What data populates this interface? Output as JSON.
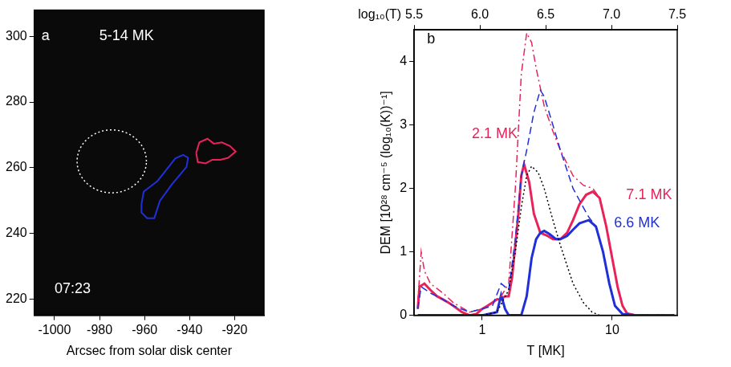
{
  "chart_data": [
    {
      "type": "image",
      "xlabel": "Arcsec from solar disk center",
      "xlim": [
        -1009,
        -907
      ],
      "xticks": [
        -1000,
        -980,
        -960,
        -940,
        -920
      ],
      "ylim": [
        215,
        308
      ],
      "yticks": [
        220,
        240,
        260,
        280,
        300
      ],
      "grid": false,
      "regions": [
        {
          "color": "#ffffff",
          "line_style": "dotted",
          "center": [
            -974.6,
            261.9
          ],
          "radius": [
            15.4,
            9.6
          ]
        },
        {
          "color": "#2030d8",
          "line_style": "solid",
          "x": [
            -961.4,
            -960.4,
            -954.3,
            -946.4,
            -942.9,
            -940.7,
            -941.4,
            -947.9,
            -953.2,
            -955.7,
            -958.9,
            -961.4
          ],
          "y": [
            248.9,
            252.7,
            255.9,
            262.8,
            263.9,
            263.0,
            260.2,
            254.9,
            249.9,
            244.6,
            244.6,
            246.3
          ]
        },
        {
          "color": "#e8235a",
          "line_style": "solid",
          "x": [
            -937.1,
            -935.7,
            -932.1,
            -929.3,
            -925.7,
            -922.1,
            -919.6,
            -922.9,
            -926.4,
            -930.0,
            -932.9,
            -936.4
          ],
          "y": [
            264.5,
            267.7,
            268.8,
            267.3,
            267.7,
            266.6,
            264.9,
            263.0,
            262.4,
            262.4,
            261.3,
            261.7
          ]
        }
      ],
      "annotations": [
        {
          "text": "a",
          "x": -1004,
          "y": 300,
          "color": "#ffffff"
        },
        {
          "text": "5-14 MK",
          "x": -968,
          "y": 300,
          "color": "#ffffff"
        },
        {
          "text": "07:23",
          "x": -992,
          "y": 223,
          "color": "#ffffff"
        }
      ]
    },
    {
      "type": "line",
      "xlabel": "T [MK]",
      "ylabel": "DEM [10²⁸ cm⁻⁵ (log₁₀(K))⁻¹]",
      "x2label": "log₁₀(T)",
      "log": "x",
      "xlim": [
        0.3162,
        31.62
      ],
      "xticks": [
        1,
        10
      ],
      "x2lim": [
        5.5,
        7.5
      ],
      "x2ticks": [
        5.5,
        {
          "value": 6,
          "label": "6.0"
        },
        6.5,
        {
          "value": 7,
          "label": "7.0"
        },
        7.5
      ],
      "ylim": [
        0,
        4.5
      ],
      "yticks": [
        0,
        1,
        2,
        3,
        4
      ],
      "grid": false,
      "series": [
        {
          "color": "#000000",
          "line_style": "dotted",
          "x": [
            1.0,
            1.3,
            1.6,
            1.8,
            2.0,
            2.2,
            2.4,
            2.7,
            3.0,
            3.5,
            4.0,
            5.0,
            6.0,
            7.0,
            8.0
          ],
          "values": [
            0,
            0.05,
            0.4,
            1.0,
            1.7,
            2.2,
            2.35,
            2.25,
            2.0,
            1.5,
            1.1,
            0.5,
            0.2,
            0.05,
            0
          ]
        },
        {
          "color": "#2030d8",
          "line_style": "dashed",
          "x": [
            0.32,
            0.34,
            0.4,
            0.5,
            0.6,
            0.8,
            1.0,
            1.2,
            1.4,
            1.6,
            1.8,
            2.0,
            2.2,
            2.5,
            2.8,
            3.0,
            3.5,
            4.0,
            5.0,
            6.0,
            6.6,
            7.5,
            8.5,
            9.5,
            10.5,
            12,
            15,
            30
          ],
          "values": [
            0.1,
            0.45,
            0.35,
            0.25,
            0.15,
            0.05,
            0.1,
            0.15,
            0.5,
            0.4,
            1.2,
            2.2,
            2.6,
            3.2,
            3.55,
            3.45,
            3.0,
            2.6,
            2.0,
            1.7,
            1.55,
            1.4,
            1.0,
            0.5,
            0.15,
            0.02,
            0,
            0
          ]
        },
        {
          "color": "#e8235a",
          "line_style": "dashdot",
          "x": [
            0.32,
            0.34,
            0.36,
            0.4,
            0.5,
            0.6,
            0.8,
            1.0,
            1.2,
            1.4,
            1.6,
            1.8,
            2.0,
            2.2,
            2.4,
            2.6,
            3.0,
            3.5,
            4.0,
            5.0,
            6.0,
            7.1,
            8.0,
            9.0,
            10,
            11,
            12,
            13,
            15,
            30
          ],
          "values": [
            0.2,
            1.0,
            0.7,
            0.5,
            0.35,
            0.2,
            0.05,
            0.1,
            0.2,
            0.3,
            0.5,
            2.0,
            3.8,
            4.45,
            4.3,
            3.9,
            3.3,
            2.9,
            2.6,
            2.2,
            2.05,
            2.0,
            1.85,
            1.4,
            0.9,
            0.45,
            0.15,
            0.03,
            0,
            0
          ]
        },
        {
          "color": "#2030d8",
          "line_style": "solid",
          "x": [
            0.32,
            0.5,
            1.0,
            1.3,
            1.4,
            1.5,
            1.6,
            2.0,
            2.2,
            2.4,
            2.6,
            2.8,
            3.0,
            3.3,
            3.7,
            4.0,
            4.5,
            5.0,
            5.6,
            6.6,
            7.5,
            8.5,
            9.5,
            10.5,
            12,
            15,
            30
          ],
          "values": [
            0,
            0,
            0,
            0.05,
            0.32,
            0.1,
            0,
            0,
            0.3,
            0.9,
            1.2,
            1.3,
            1.33,
            1.28,
            1.2,
            1.2,
            1.25,
            1.35,
            1.45,
            1.5,
            1.4,
            1.0,
            0.5,
            0.15,
            0.02,
            0,
            0
          ]
        },
        {
          "color": "#e8235a",
          "line_style": "solid",
          "x": [
            0.32,
            0.33,
            0.36,
            0.4,
            0.45,
            0.5,
            0.55,
            0.6,
            0.7,
            0.8,
            0.9,
            1.0,
            1.1,
            1.2,
            1.3,
            1.4,
            1.5,
            1.6,
            1.7,
            1.9,
            2.0,
            2.1,
            2.3,
            2.5,
            2.8,
            3.2,
            3.5,
            4.0,
            4.5,
            5.0,
            5.6,
            6.3,
            7.1,
            8.0,
            9.0,
            10,
            11,
            12,
            13,
            15,
            20,
            30
          ],
          "values": [
            0.1,
            0.45,
            0.5,
            0.4,
            0.3,
            0.25,
            0.2,
            0.15,
            0.05,
            0.0,
            0.02,
            0.1,
            0.15,
            0.2,
            0.25,
            0.25,
            0.3,
            0.3,
            0.6,
            1.6,
            2.2,
            2.38,
            2.1,
            1.6,
            1.3,
            1.25,
            1.2,
            1.2,
            1.3,
            1.5,
            1.75,
            1.9,
            1.95,
            1.85,
            1.4,
            0.9,
            0.45,
            0.15,
            0.03,
            0,
            0,
            0
          ]
        }
      ],
      "annotations": [
        {
          "text": "b",
          "x": 0.405,
          "y": 4.35,
          "color": "#000000"
        },
        {
          "text": "2.1 MK",
          "x": 1.25,
          "y": 2.85,
          "color": "#e8235a"
        },
        {
          "text": "7.1 MK",
          "x": 19.2,
          "y": 1.9,
          "color": "#e8235a"
        },
        {
          "text": "6.6 MK",
          "x": 15.5,
          "y": 1.45,
          "color": "#2030d8"
        }
      ]
    }
  ]
}
